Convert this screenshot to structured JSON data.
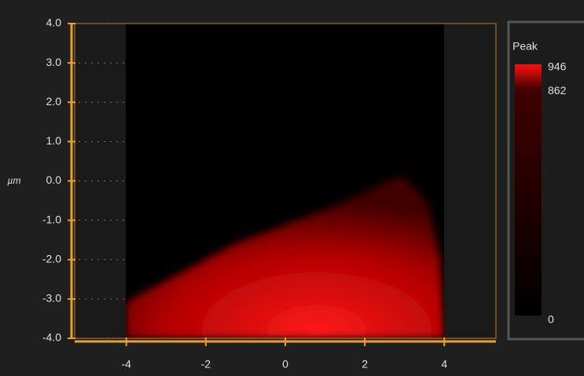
{
  "chart_data": {
    "type": "image",
    "y_label": "µm",
    "xlim": [
      -5.3,
      5.3
    ],
    "ylim": [
      -4,
      4
    ],
    "xticks": [
      -4,
      -2,
      0,
      2,
      4
    ],
    "yticks": [
      {
        "value": 4,
        "label": "4.0"
      },
      {
        "value": 3,
        "label": "3.0"
      },
      {
        "value": 2,
        "label": "2.0"
      },
      {
        "value": 1,
        "label": "1.0"
      },
      {
        "value": 0,
        "label": "0.0"
      },
      {
        "value": -1,
        "label": "-1.0"
      },
      {
        "value": -2,
        "label": "-2.0"
      },
      {
        "value": -3,
        "label": "-3.0"
      },
      {
        "value": -4,
        "label": "-4.0"
      }
    ],
    "grid": true,
    "colorbar": {
      "title": "Peak",
      "ticks": [
        946,
        862,
        0
      ]
    }
  }
}
